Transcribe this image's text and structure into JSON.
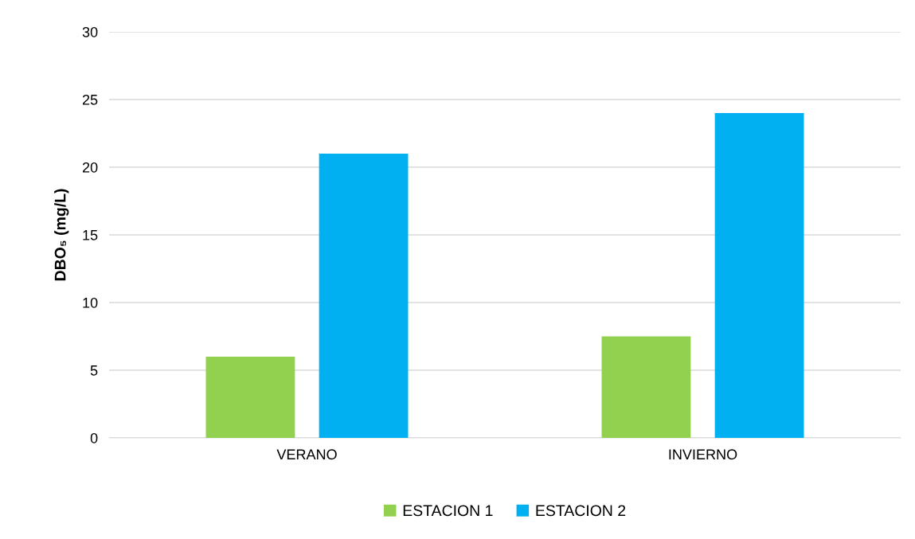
{
  "chart_data": {
    "type": "bar",
    "ylabel": "DBO₅ (mg/L)",
    "categories": [
      "VERANO",
      "INVIERNO"
    ],
    "series": [
      {
        "name": "ESTACION 1",
        "color": "#92d050",
        "values": [
          6,
          7.5
        ]
      },
      {
        "name": "ESTACION 2",
        "color": "#00b0f0",
        "values": [
          21,
          24
        ]
      }
    ],
    "ylim": [
      0,
      30
    ],
    "yticks": [
      0,
      5,
      10,
      15,
      20,
      25,
      30
    ],
    "grid": "y",
    "legend": "bottom"
  }
}
